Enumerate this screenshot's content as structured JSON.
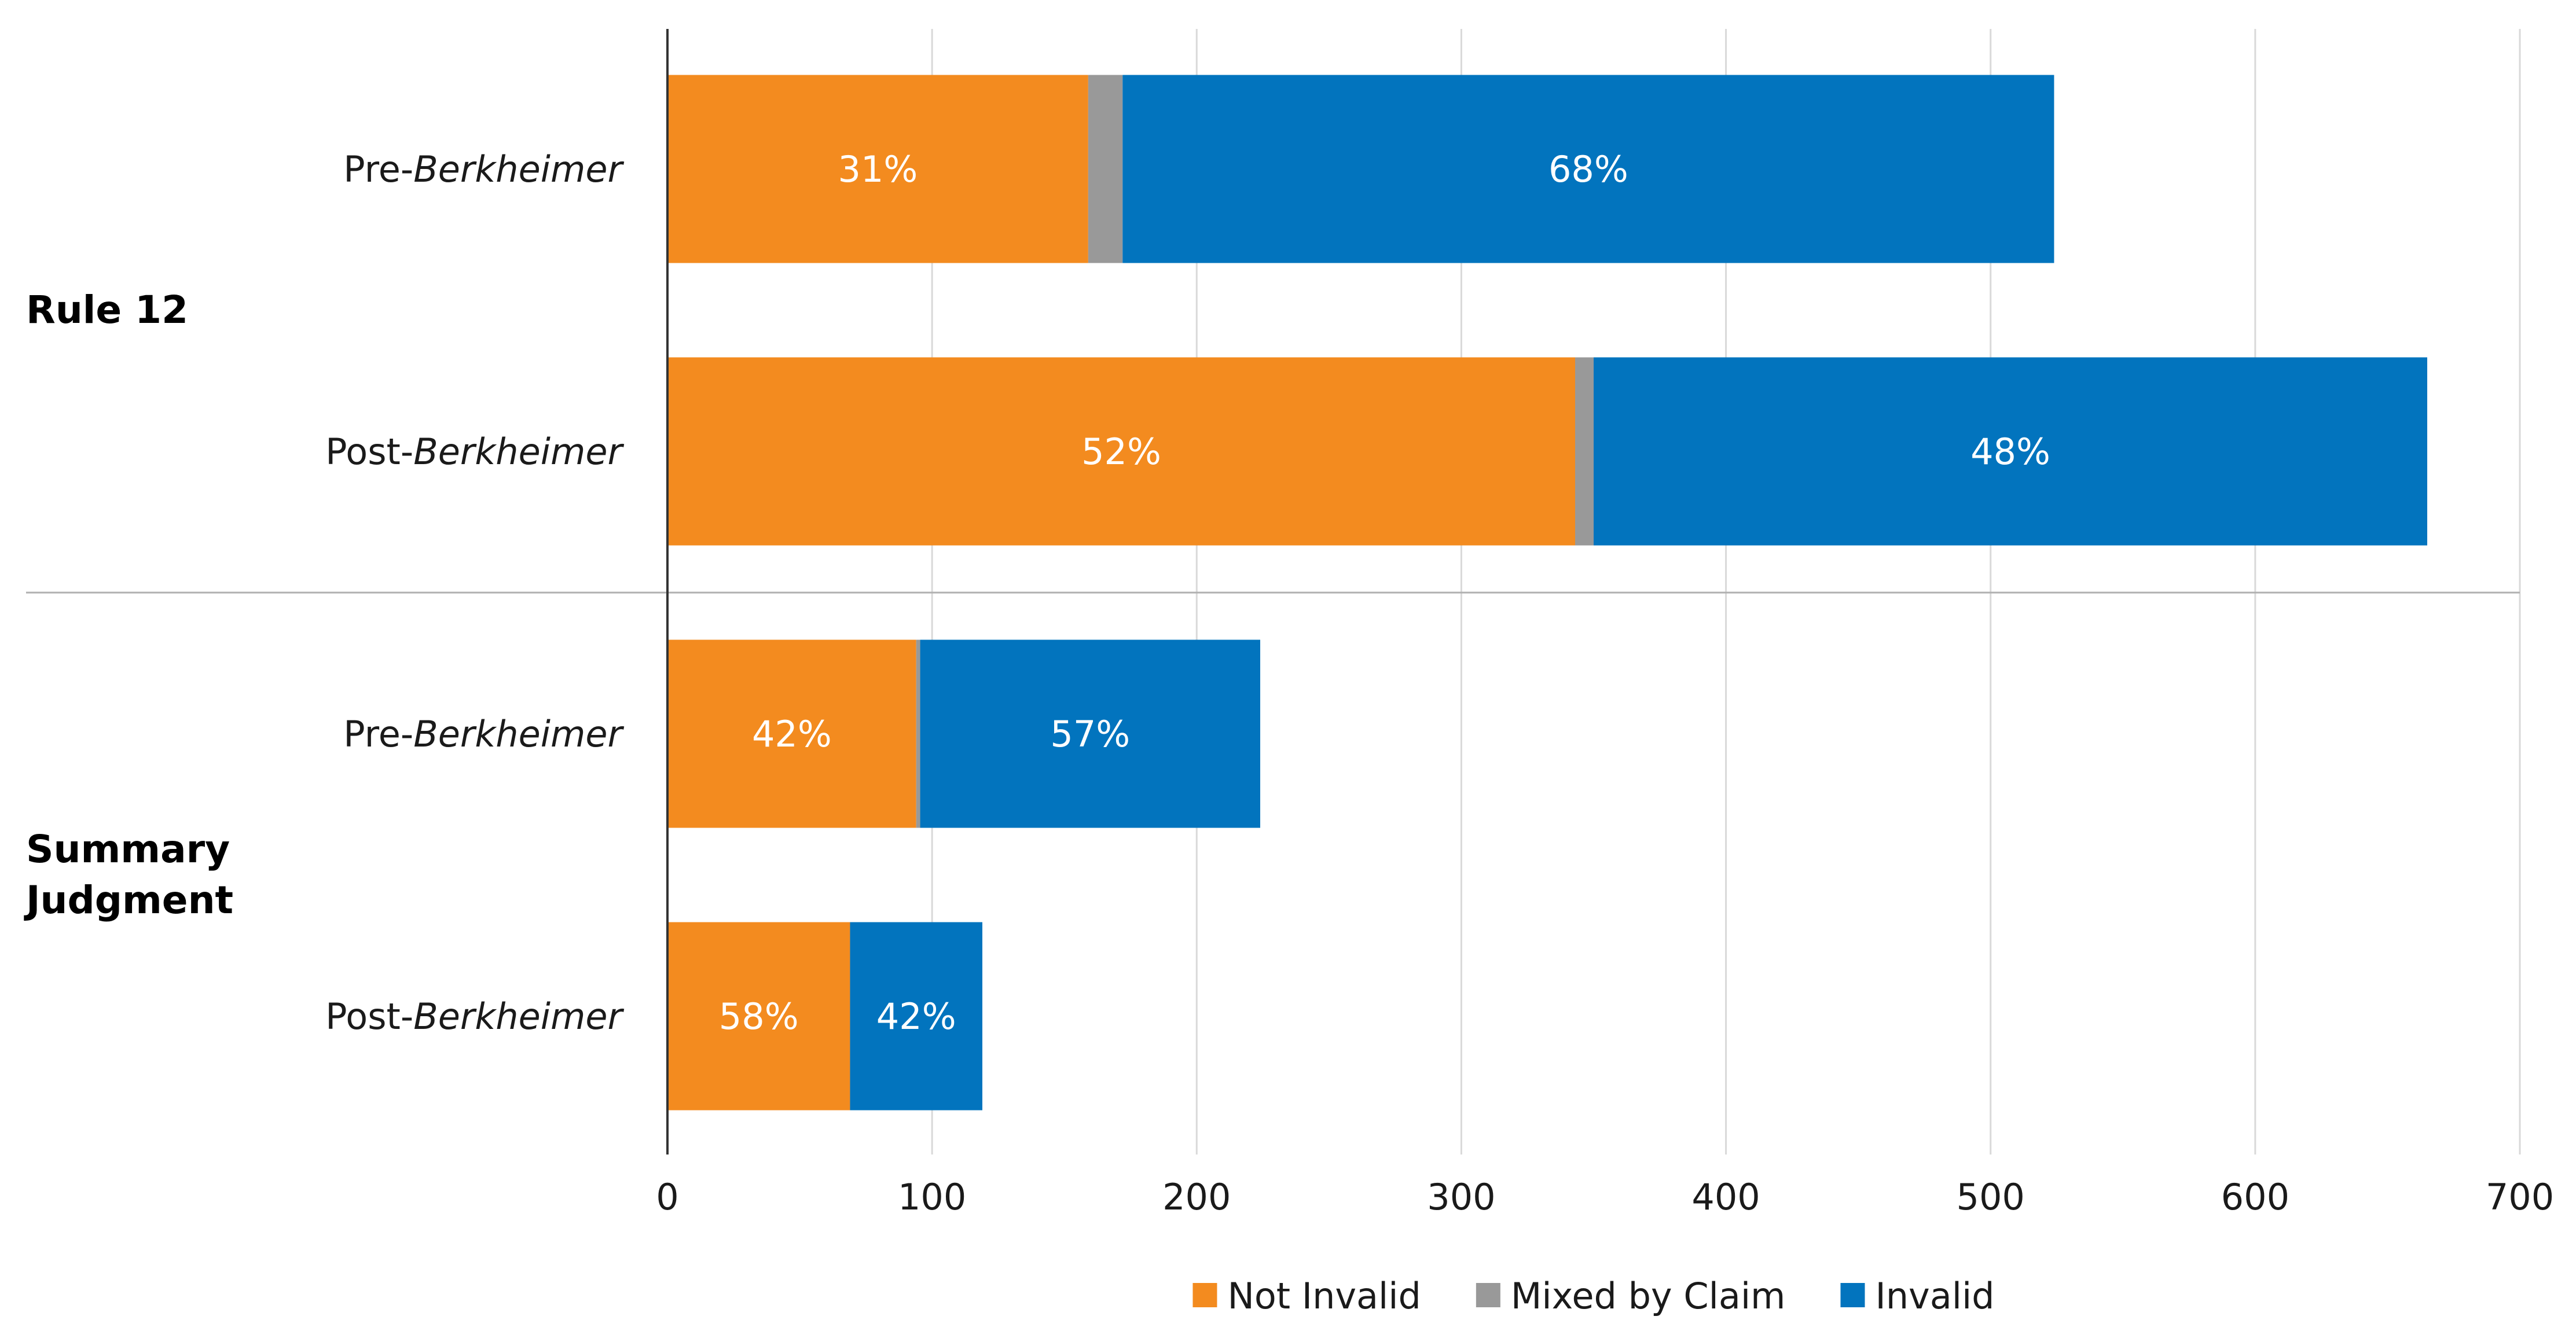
{
  "chart_data": {
    "type": "bar",
    "orientation": "horizontal",
    "stacked": true,
    "groups": [
      {
        "name": "Rule 12",
        "rows": [
          {
            "prefix": "Pre-",
            "suffix": "Berkheimer",
            "values": [
              159,
              13,
              352
            ],
            "labels": [
              "31%",
              "",
              "68%"
            ]
          },
          {
            "prefix": "Post-",
            "suffix": "Berkheimer",
            "values": [
              343,
              7,
              315
            ],
            "labels": [
              "52%",
              "",
              "48%"
            ]
          }
        ]
      },
      {
        "name": "Summary Judgment",
        "name_lines": [
          "Summary",
          "Judgment"
        ],
        "rows": [
          {
            "prefix": "Pre-",
            "suffix": "Berkheimer",
            "values": [
              94,
              1.5,
              128.5
            ],
            "labels": [
              "42%",
              "",
              "57%"
            ]
          },
          {
            "prefix": "Post-",
            "suffix": "Berkheimer",
            "values": [
              69,
              0,
              50
            ],
            "labels": [
              "58%",
              "",
              "42%"
            ]
          }
        ]
      }
    ],
    "series": [
      {
        "name": "Not Invalid",
        "color": "#F38B1F"
      },
      {
        "name": "Mixed by Claim",
        "color": "#999999"
      },
      {
        "name": "Invalid",
        "color": "#0274BE"
      }
    ],
    "x_ticks": [
      "0",
      "100",
      "200",
      "300",
      "400",
      "500",
      "600",
      "700"
    ],
    "xlim": [
      0,
      700
    ],
    "grid": true,
    "legend_position": "bottom"
  }
}
